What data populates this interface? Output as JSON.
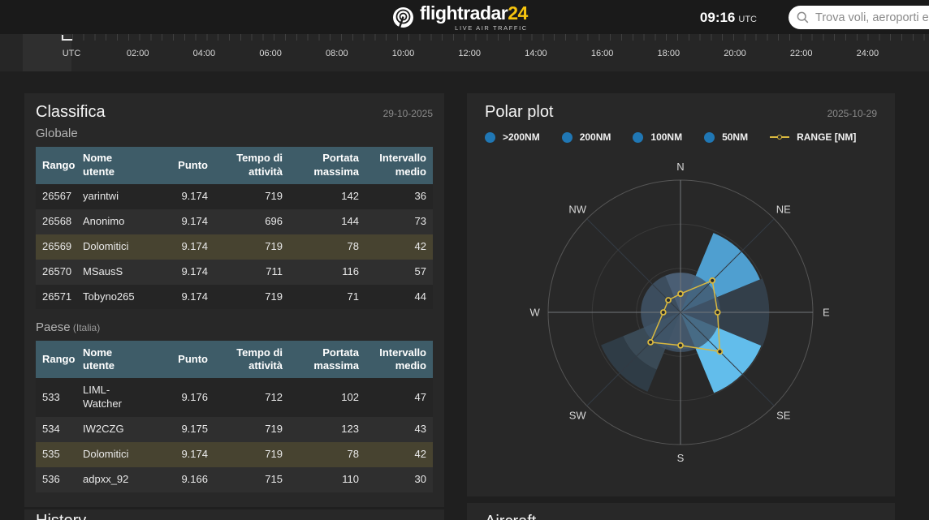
{
  "header": {
    "logo": {
      "brand": "flightradar",
      "brand_accent": "24",
      "tagline": "LIVE AIR TRAFFIC"
    },
    "clock": {
      "time": "09:16",
      "zone": "UTC"
    },
    "search": {
      "placeholder": "Trova voli, aeroporti e"
    }
  },
  "timeline": {
    "labels": [
      "UTC",
      "02:00",
      "04:00",
      "06:00",
      "08:00",
      "10:00",
      "12:00",
      "14:00",
      "16:00",
      "18:00",
      "20:00",
      "22:00",
      "24:00"
    ]
  },
  "leaderboard": {
    "title": "Classifica",
    "date": "29-10-2025",
    "sections": [
      {
        "subtitle": "Globale",
        "note": "",
        "columns": [
          "Rango",
          "Nome utente",
          "Punto",
          "Tempo di attività",
          "Portata massima",
          "Intervallo medio"
        ],
        "rows": [
          {
            "cells": [
              "26567",
              "yarintwi",
              "9.174",
              "719",
              "142",
              "36"
            ],
            "highlight": false
          },
          {
            "cells": [
              "26568",
              "Anonimo",
              "9.174",
              "696",
              "144",
              "73"
            ],
            "highlight": false
          },
          {
            "cells": [
              "26569",
              "Dolomitici",
              "9.174",
              "719",
              "78",
              "42"
            ],
            "highlight": true
          },
          {
            "cells": [
              "26570",
              "MSausS",
              "9.174",
              "711",
              "116",
              "57"
            ],
            "highlight": false
          },
          {
            "cells": [
              "26571",
              "Tobyno265",
              "9.174",
              "719",
              "71",
              "44"
            ],
            "highlight": false
          }
        ]
      },
      {
        "subtitle": "Paese",
        "note": "(Italia)",
        "columns": [
          "Rango",
          "Nome utente",
          "Punto",
          "Tempo di attività",
          "Portata massima",
          "Intervallo medio"
        ],
        "rows": [
          {
            "cells": [
              "533",
              "LIML-Watcher",
              "9.176",
              "712",
              "102",
              "47"
            ],
            "highlight": false
          },
          {
            "cells": [
              "534",
              "IW2CZG",
              "9.175",
              "719",
              "123",
              "43"
            ],
            "highlight": false
          },
          {
            "cells": [
              "535",
              "Dolomitici",
              "9.174",
              "719",
              "78",
              "42"
            ],
            "highlight": true
          },
          {
            "cells": [
              "536",
              "adpxx_92",
              "9.166",
              "715",
              "110",
              "30"
            ],
            "highlight": false
          }
        ]
      }
    ]
  },
  "polar": {
    "title": "Polar plot",
    "date": "2025-10-29",
    "legend": [
      {
        "label": ">200NM",
        "color": "#2077b4",
        "type": "dot"
      },
      {
        "label": "200NM",
        "color": "#2077b4",
        "type": "dot"
      },
      {
        "label": "100NM",
        "color": "#2077b4",
        "type": "dot"
      },
      {
        "label": "50NM",
        "color": "#2077b4",
        "type": "dot"
      },
      {
        "label": "RANGE [NM]",
        "color": "#d9b83f",
        "type": "line"
      }
    ]
  },
  "chart_data": {
    "type": "polar",
    "title": "Polar plot",
    "date": "2025-10-29",
    "angular_categories": [
      "N",
      "NE",
      "E",
      "SE",
      "S",
      "SW",
      "W",
      "NW"
    ],
    "radial_unit": "fraction of plot radius (no radial tick labels shown)",
    "rings": [
      0.333,
      0.667,
      1.0
    ],
    "legend_entries": [
      ">200NM",
      "200NM",
      "100NM",
      "50NM",
      "RANGE [NM]"
    ],
    "sector_series": [
      {
        "direction": "NE",
        "inner": 0,
        "outer": 0.65,
        "color": "#4f9fd0",
        "opacity": 1
      },
      {
        "direction": "E",
        "inner": 0,
        "outer": 0.67,
        "color": "#333f4a",
        "opacity": 1
      },
      {
        "direction": "SE",
        "inner": 0,
        "outer": 0.66,
        "color": "#62bdeb",
        "opacity": 1
      },
      {
        "direction": "SW",
        "inner": 0,
        "outer": 0.47,
        "color": "#3a4a56",
        "opacity": 1
      },
      {
        "direction": "SW",
        "inner": 0.47,
        "outer": 0.65,
        "color": "#2f3c46",
        "opacity": 1
      },
      {
        "direction": "ALL",
        "inner": 0,
        "outer": 0.3,
        "color": "#41566b",
        "opacity": 0.8
      },
      {
        "direction": "N",
        "inner": 0,
        "outer": 0.3,
        "color": "#5a7490",
        "opacity": 0.45
      },
      {
        "direction": "S",
        "inner": 0,
        "outer": 0.28,
        "color": "#50687f",
        "opacity": 0.35
      }
    ],
    "range_series": {
      "name": "RANGE [NM]",
      "color": "#d9b83f",
      "values_by_direction": {
        "N": 0.14,
        "NE": 0.34,
        "E": 0.28,
        "SE": 0.42,
        "S": 0.25,
        "SW": 0.32,
        "W": 0.13,
        "NW": 0.13
      }
    }
  },
  "partials": {
    "left_heading": "History",
    "right_heading": "Aircraft"
  }
}
